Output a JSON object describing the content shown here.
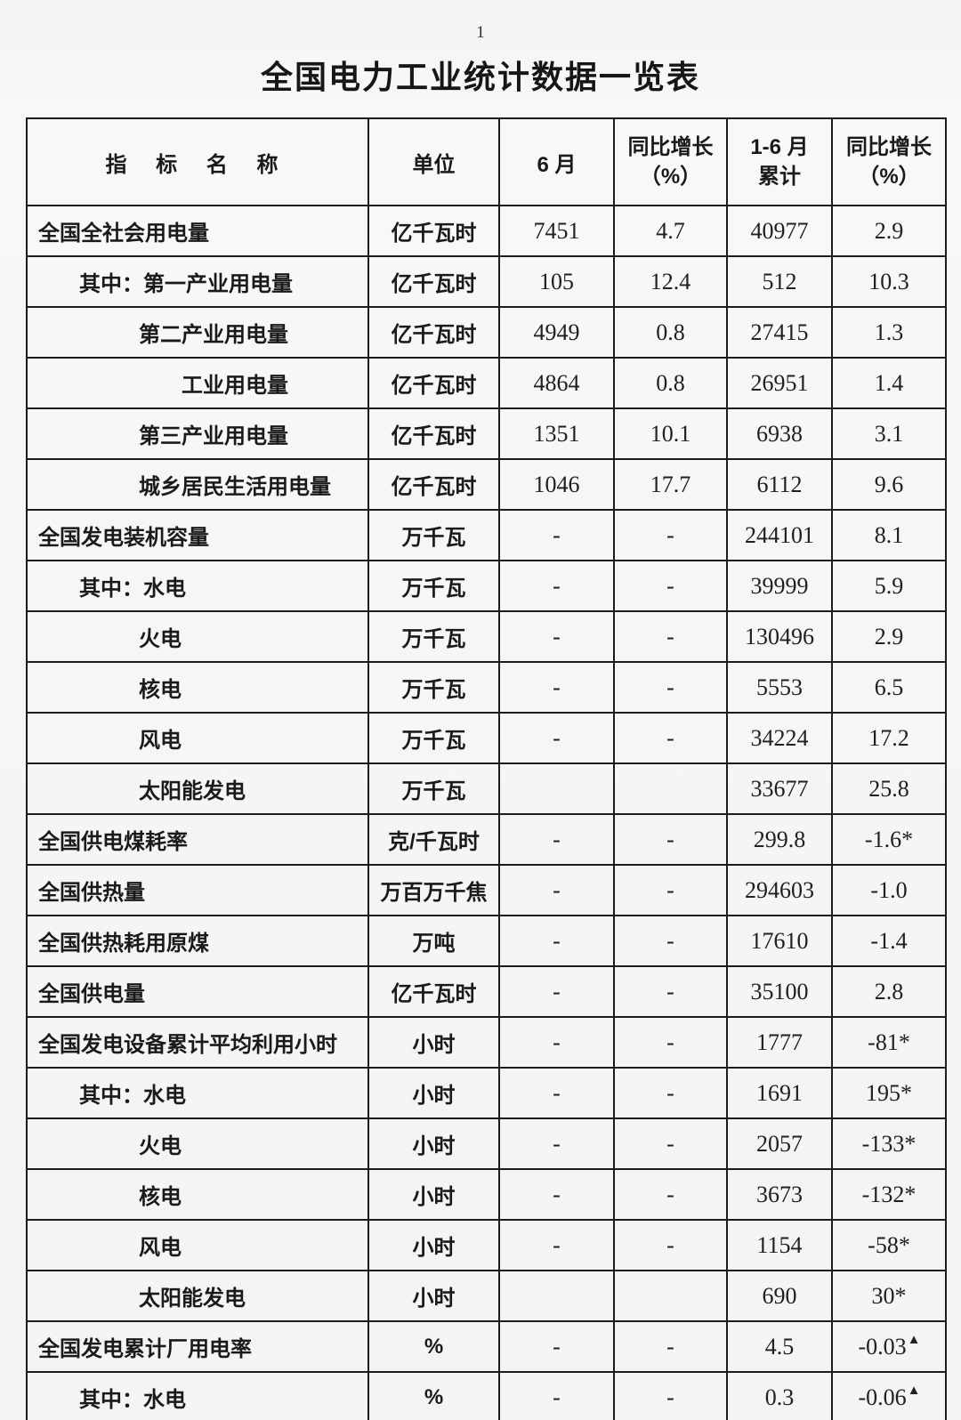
{
  "page": {
    "number": "1",
    "title": "全国电力工业统计数据一览表"
  },
  "table": {
    "headers": {
      "indicator": "指 标 名 称",
      "unit": "单位",
      "june": "6 月",
      "yoy_line1": "同比增长",
      "yoy_line2": "（%）",
      "cumulative_line1": "1-6 月",
      "cumulative_line2": "累计"
    },
    "rows": [
      {
        "name": "全国全社会用电量",
        "indent": 0,
        "unit": "亿千瓦时",
        "june": "7451",
        "june_yoy": "4.7",
        "cumulative": "40977",
        "cumulative_yoy": "2.9"
      },
      {
        "name": "其中：第一产业用电量",
        "indent": 1,
        "unit": "亿千瓦时",
        "june": "105",
        "june_yoy": "12.4",
        "cumulative": "512",
        "cumulative_yoy": "10.3"
      },
      {
        "name": "第二产业用电量",
        "indent": 2,
        "unit": "亿千瓦时",
        "june": "4949",
        "june_yoy": "0.8",
        "cumulative": "27415",
        "cumulative_yoy": "1.3"
      },
      {
        "name": "工业用电量",
        "indent": 3,
        "unit": "亿千瓦时",
        "june": "4864",
        "june_yoy": "0.8",
        "cumulative": "26951",
        "cumulative_yoy": "1.4"
      },
      {
        "name": "第三产业用电量",
        "indent": 2,
        "unit": "亿千瓦时",
        "june": "1351",
        "june_yoy": "10.1",
        "cumulative": "6938",
        "cumulative_yoy": "3.1"
      },
      {
        "name": "城乡居民生活用电量",
        "indent": 2,
        "unit": "亿千瓦时",
        "june": "1046",
        "june_yoy": "17.7",
        "cumulative": "6112",
        "cumulative_yoy": "9.6"
      },
      {
        "name": "全国发电装机容量",
        "indent": 0,
        "unit": "万千瓦",
        "june": "-",
        "june_yoy": "-",
        "cumulative": "244101",
        "cumulative_yoy": "8.1"
      },
      {
        "name": "其中：水电",
        "indent": 1,
        "unit": "万千瓦",
        "june": "-",
        "june_yoy": "-",
        "cumulative": "39999",
        "cumulative_yoy": "5.9"
      },
      {
        "name": "火电",
        "indent": 2,
        "unit": "万千瓦",
        "june": "-",
        "june_yoy": "-",
        "cumulative": "130496",
        "cumulative_yoy": "2.9"
      },
      {
        "name": "核电",
        "indent": 2,
        "unit": "万千瓦",
        "june": "-",
        "june_yoy": "-",
        "cumulative": "5553",
        "cumulative_yoy": "6.5"
      },
      {
        "name": "风电",
        "indent": 2,
        "unit": "万千瓦",
        "june": "-",
        "june_yoy": "-",
        "cumulative": "34224",
        "cumulative_yoy": "17.2"
      },
      {
        "name": "太阳能发电",
        "indent": 2,
        "unit": "万千瓦",
        "june": "",
        "june_yoy": "",
        "cumulative": "33677",
        "cumulative_yoy": "25.8"
      },
      {
        "name": "全国供电煤耗率",
        "indent": 0,
        "unit": "克/千瓦时",
        "june": "-",
        "june_yoy": "-",
        "cumulative": "299.8",
        "cumulative_yoy": "-1.6*"
      },
      {
        "name": "全国供热量",
        "indent": 0,
        "unit": "万百万千焦",
        "june": "-",
        "june_yoy": "-",
        "cumulative": "294603",
        "cumulative_yoy": "-1.0"
      },
      {
        "name": "全国供热耗用原煤",
        "indent": 0,
        "unit": "万吨",
        "june": "-",
        "june_yoy": "-",
        "cumulative": "17610",
        "cumulative_yoy": "-1.4"
      },
      {
        "name": "全国供电量",
        "indent": 0,
        "unit": "亿千瓦时",
        "june": "-",
        "june_yoy": "-",
        "cumulative": "35100",
        "cumulative_yoy": "2.8"
      },
      {
        "name": "全国发电设备累计平均利用小时",
        "indent": 0,
        "unit": "小时",
        "june": "-",
        "june_yoy": "-",
        "cumulative": "1777",
        "cumulative_yoy": "-81*"
      },
      {
        "name": "其中：水电",
        "indent": 1,
        "unit": "小时",
        "june": "-",
        "june_yoy": "-",
        "cumulative": "1691",
        "cumulative_yoy": "195*"
      },
      {
        "name": "火电",
        "indent": 2,
        "unit": "小时",
        "june": "-",
        "june_yoy": "-",
        "cumulative": "2057",
        "cumulative_yoy": "-133*"
      },
      {
        "name": "核电",
        "indent": 2,
        "unit": "小时",
        "june": "-",
        "june_yoy": "-",
        "cumulative": "3673",
        "cumulative_yoy": "-132*"
      },
      {
        "name": "风电",
        "indent": 2,
        "unit": "小时",
        "june": "-",
        "june_yoy": "-",
        "cumulative": "1154",
        "cumulative_yoy": "-58*"
      },
      {
        "name": "太阳能发电",
        "indent": 2,
        "unit": "小时",
        "june": "",
        "june_yoy": "",
        "cumulative": "690",
        "cumulative_yoy": "30*"
      },
      {
        "name": "全国发电累计厂用电率",
        "indent": 0,
        "unit": "%",
        "june": "-",
        "june_yoy": "-",
        "cumulative": "4.5",
        "cumulative_yoy": "-0.03",
        "mark": "▲"
      },
      {
        "name": "其中：水电",
        "indent": 1,
        "unit": "%",
        "june": "-",
        "june_yoy": "-",
        "cumulative": "0.3",
        "cumulative_yoy": "-0.06",
        "mark": "▲"
      }
    ]
  }
}
